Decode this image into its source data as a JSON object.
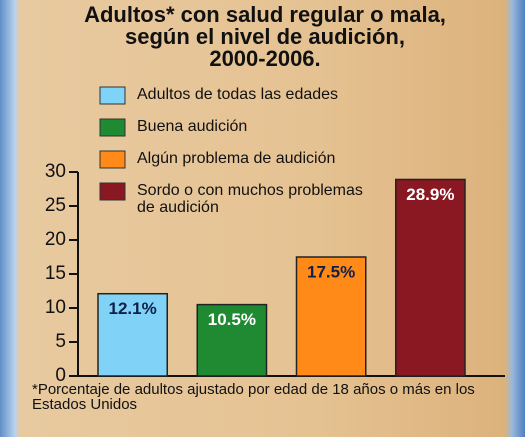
{
  "chart_data": {
    "type": "bar",
    "title": [
      "Adultos* con salud regular o mala,",
      "según el nivel de audición,",
      "2000-2006."
    ],
    "categories": [
      null
    ],
    "series": [
      {
        "name": "Adultos de todas las edades",
        "color": "#80d2f6",
        "values": [
          12.1
        ],
        "value_labels": [
          "12.1%"
        ]
      },
      {
        "name": "Buena audición",
        "color": "#1f8a32",
        "values": [
          10.5
        ],
        "value_labels": [
          "10.5%"
        ]
      },
      {
        "name": "Algún problema de audición",
        "color": "#ff8a18",
        "values": [
          17.5
        ],
        "value_labels": [
          "17.5%"
        ]
      },
      {
        "name": "Sordo o con muchos problemas de audición",
        "color": "#8a1822",
        "values": [
          28.9
        ],
        "value_labels": [
          "28.9%"
        ]
      }
    ],
    "ylim": [
      0,
      30
    ],
    "yticks": [
      0,
      5,
      10,
      15,
      20,
      25,
      30
    ],
    "footnote": "*Porcentaje de adultos ajustado por edad de 18 años o más en los Estados Unidos"
  }
}
